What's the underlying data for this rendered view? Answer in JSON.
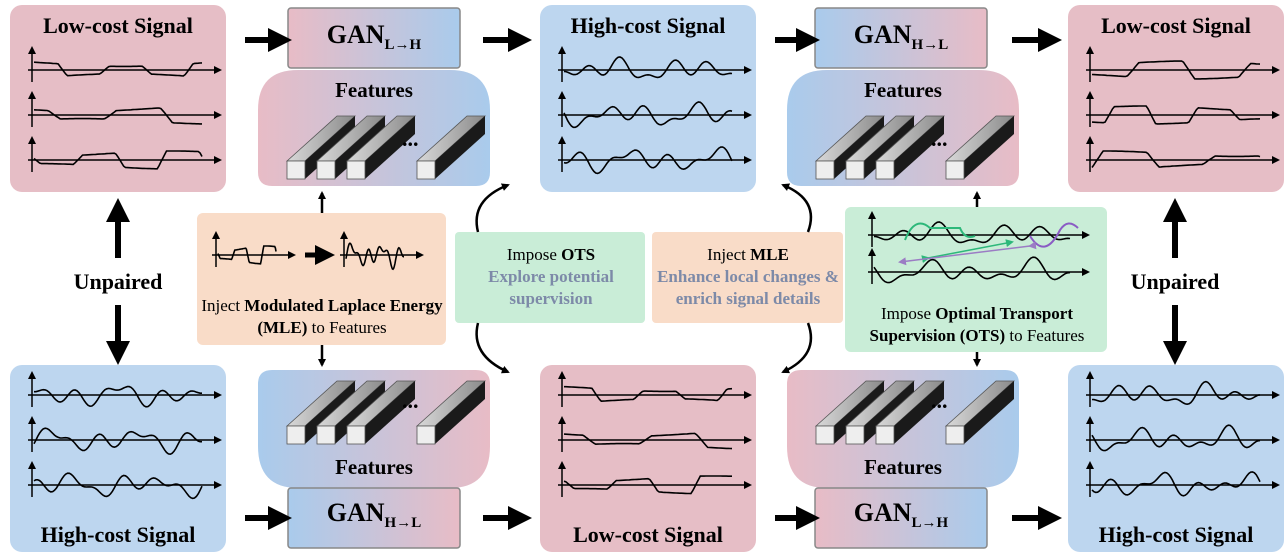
{
  "top": {
    "source": "Low-cost Signal",
    "gan_first": {
      "name": "GAN",
      "sub": "L→H"
    },
    "middle": "High-cost Signal",
    "gan_second": {
      "name": "GAN",
      "sub": "H→L"
    },
    "target": "Low-cost Signal"
  },
  "bottom": {
    "source": "High-cost Signal",
    "gan_first": {
      "name": "GAN",
      "sub": "H→L"
    },
    "middle": "Low-cost Signal",
    "gan_second": {
      "name": "GAN",
      "sub": "L→H"
    },
    "target": "High-cost Signal"
  },
  "features": [
    "Features",
    "Features",
    "Features",
    "Features"
  ],
  "feature_ellipsis": [
    "...",
    "...",
    "...",
    "..."
  ],
  "unpaired": [
    "Unpaired",
    "Unpaired"
  ],
  "mle_box": {
    "prefix": "Inject",
    "bold": "Modulated Laplace Energy (MLE)",
    "suffix": "to Features"
  },
  "ots_note": {
    "prefix": "Impose",
    "bold": "OTS",
    "detail": "Explore potential supervision"
  },
  "mle_note": {
    "prefix": "Inject",
    "bold": "MLE",
    "detail": "Enhance local changes & enrich signal details"
  },
  "ots_box": {
    "prefix": "Impose",
    "bold": "Optimal Transport Supervision (OTS)",
    "suffix": "to Features"
  }
}
